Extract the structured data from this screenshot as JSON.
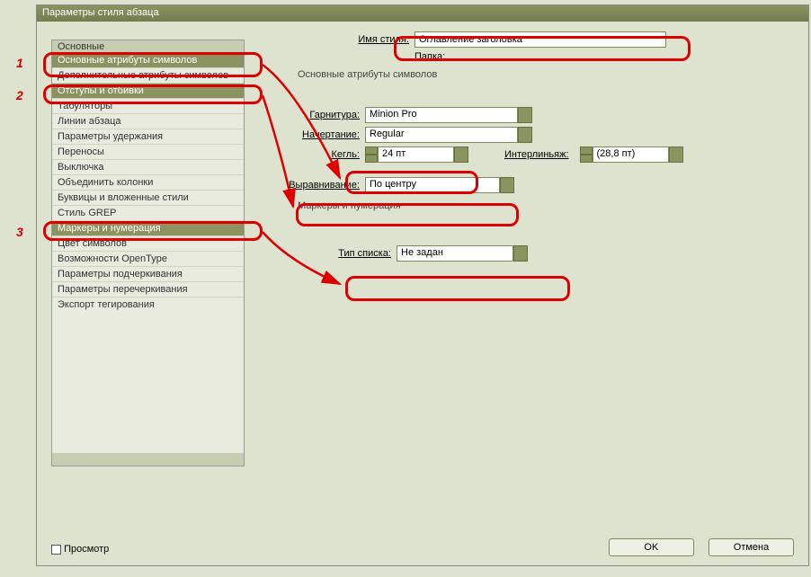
{
  "window": {
    "title": "Параметры стиля абзаца"
  },
  "sidebar": {
    "head": "Основные",
    "items": [
      {
        "label": "Основные атрибуты символов",
        "hot": true
      },
      {
        "label": "Дополнительные атрибуты символов",
        "hot": false
      },
      {
        "label": "Отступы и отбивки",
        "hot": true
      },
      {
        "label": "Табуляторы",
        "hot": false
      },
      {
        "label": "Линии абзаца",
        "hot": false
      },
      {
        "label": "Параметры удержания",
        "hot": false
      },
      {
        "label": "Переносы",
        "hot": false
      },
      {
        "label": "Выключка",
        "hot": false
      },
      {
        "label": "Объединить колонки",
        "hot": false
      },
      {
        "label": "Буквицы и вложенные стили",
        "hot": false
      },
      {
        "label": "Стиль GREP",
        "hot": false
      },
      {
        "label": "Маркеры и нумерация",
        "hot": true
      },
      {
        "label": "Цвет символов",
        "hot": false
      },
      {
        "label": "Возможности OpenType",
        "hot": false
      },
      {
        "label": "Параметры подчеркивания",
        "hot": false
      },
      {
        "label": "Параметры перечеркивания",
        "hot": false
      },
      {
        "label": "Экспорт тегирования",
        "hot": false
      }
    ]
  },
  "main": {
    "styleNameLabel": "Имя стиля:",
    "styleName": "Оглавление заголовка",
    "folderLabel": "Папка:",
    "section1": "Основные атрибуты символов",
    "fontLabel": "Гарнитура:",
    "font": "Minion Pro",
    "faceLabel": "Начертание:",
    "face": "Regular",
    "sizeLabel": "Кегль:",
    "size": "24 пт",
    "leadingLabel": "Интерлиньяж:",
    "leading": "(28,8 пт)",
    "alignLabel": "Выравнивание:",
    "align": "По центру",
    "section2": "Маркеры и нумерация",
    "listLabel": "Тип списка:",
    "list": "Не задан"
  },
  "footer": {
    "preview": "Просмотр",
    "ok": "OK",
    "cancel": "Отмена"
  },
  "annot": {
    "n1": "1",
    "n2": "2",
    "n3": "3"
  }
}
